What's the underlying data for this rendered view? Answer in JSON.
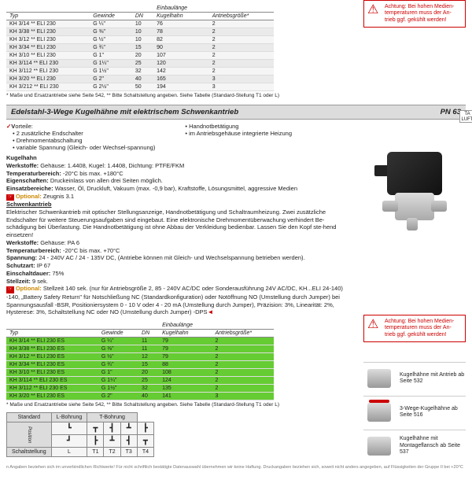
{
  "warning1": {
    "text": "Achtung: Bei hohen Medien-temperaturen muss der An-trieb ggf. gekühlt werden!"
  },
  "warning2": {
    "text": "Achtung: Bei hohen Medien-temperaturen muss der An-trieb ggf. gekühlt werden!"
  },
  "table1": {
    "headers": [
      "Typ",
      "Gewinde",
      "DN",
      "Kugelhahn",
      "Antriebsgröße*"
    ],
    "header_group": "Einbaulänge",
    "rows": [
      [
        "KH 3/14 ** ELI 230",
        "G ¼\"",
        "10",
        "76",
        "2"
      ],
      [
        "KH 3/38 ** ELI 230",
        "G ⅜\"",
        "10",
        "78",
        "2"
      ],
      [
        "KH 3/12 ** ELI 230",
        "G ½\"",
        "10",
        "82",
        "2"
      ],
      [
        "KH 3/34 ** ELI 230",
        "G ¾\"",
        "15",
        "90",
        "2"
      ],
      [
        "KH 3/10 ** ELI 230",
        "G 1\"",
        "20",
        "107",
        "2"
      ],
      [
        "KH 3/114 ** ELI 230",
        "G 1¼\"",
        "25",
        "120",
        "2"
      ],
      [
        "KH 3/112 ** ELI 230",
        "G 1½\"",
        "32",
        "142",
        "2"
      ],
      [
        "KH 3/20 ** ELI 230",
        "G 2\"",
        "40",
        "165",
        "3"
      ],
      [
        "KH 3/212 ** ELI 230",
        "G 2½\"",
        "50",
        "194",
        "3"
      ]
    ],
    "footnote": "* Maße und Ersatzantriebe siehe Seite 542, ** Bitte Schaltstellung angeben. Siehe Tabelle (Standard-Stellung T1 oder L)"
  },
  "title": {
    "main": "Edelstahl-3-Wege Kugelhähne mit elektrischem Schwenkantrieb",
    "pn": "PN 63"
  },
  "vorteile": {
    "label": "orteile:",
    "col1": [
      "2 zusätzliche Endschalter",
      "Drehmomentabschaltung",
      "variable Spannung (Gleich- oder Wechsel-spannung)"
    ],
    "col2": [
      "Handnotbetätigung",
      "im Antriebsgehäuse integrierte Heizung"
    ]
  },
  "specs": {
    "kugelhahn": "Kugelhahn",
    "werkstoffe1": "Gehäuse: 1.4408, Kugel: 1.4408, Dichtung: PTFE/FKM",
    "tempbereich1": "-20°C bis max. +180°C",
    "eigenschaften": "Druckeinlass von allen drei Seiten möglich.",
    "einsatz": "Wasser, Öl, Druckluft, Vakuum (max. -0,9 bar), Kraftstoffe, Lösungsmittel, aggressive Medien",
    "opt1": "Zeugnis 3.1",
    "schwenk": "Schwenkantrieb",
    "schwenk_txt": "Elektrischer Schwenkantrieb mit optischer Stellungsanzeige, Handnotbetätigung und Schaltraumheizung. Zwei zusätzliche Endschalter für weitere Steuerungsaufgaben sind eingebaut. Eine elektronische Drehmomentüberwachung verhindert Be-schädigung bei Überlastung. Die Handnotbetätigung ist ohne Abbau der Verkleidung bedienbar. Lassen Sie den Kopf ste-hend einsetzen!",
    "werkstoffe2": "Gehäuse: PA 6",
    "tempbereich2": "-20°C bis max. +70°C",
    "spannung": "24 - 240V AC / 24 - 135V DC, (Antriebe können mit Gleich- und Wechselspannung betrieben werden).",
    "schutzart": "IP 67",
    "einschalt": "75%",
    "stellzeit": "9 sek.",
    "opt2": "Stellzeit 140 sek. (nur für Antriebsgröße 2, 85 - 240V AC/DC oder Sonderausführung 24V AC/DC, KH...ELI 24-140) -140, „Battery Safety Return\" für Notschließung NC (Standardkonfiguration) oder Notöffnung NO (Umstellung durch Jumper) bei Spannungsausfall -BSR, Positioniersystem 0 - 10 V oder 4 - 20 mA (Umstellung durch Jumper), Präzision: 3%, Linearität: 2%, Hysterese: 3%, Schaltstellung NC oder NO (Umstellung durch Jumper) -DPS"
  },
  "table2": {
    "headers": [
      "Typ",
      "Gewinde",
      "DN",
      "Kugelhahn",
      "Antriebsgröße*"
    ],
    "header_group": "Einbaulänge",
    "rows": [
      [
        "KH 3/14 ** ELI 230 ES",
        "G ¼\"",
        "11",
        "79",
        "2"
      ],
      [
        "KH 3/38 ** ELI 230 ES",
        "G ⅜\"",
        "11",
        "79",
        "2"
      ],
      [
        "KH 3/12 ** ELI 230 ES",
        "G ½\"",
        "12",
        "79",
        "2"
      ],
      [
        "KH 3/34 ** ELI 230 ES",
        "G ¾\"",
        "15",
        "88",
        "2"
      ],
      [
        "KH 3/10 ** ELI 230 ES",
        "G 1\"",
        "20",
        "108",
        "2"
      ],
      [
        "KH 3/114 ** ELI 230 ES",
        "G 1¼\"",
        "25",
        "124",
        "2"
      ],
      [
        "KH 3/112 ** ELI 230 ES",
        "G 1½\"",
        "32",
        "135",
        "2"
      ],
      [
        "KH 3/20 ** ELI 230 ES",
        "G 2\"",
        "40",
        "141",
        "3"
      ]
    ],
    "footnote": "* Maße und Ersatzantriebe siehe Seite 542, ** Bitte Schaltstellung angeben. Siehe Tabelle (Standard-Stellung T1 oder L)"
  },
  "bore": {
    "h1": "Standard",
    "h2": "L-Bohrung",
    "h3": "T-Bohrung",
    "row_lbl": [
      "Position",
      "Schaltstellung"
    ],
    "cols": [
      "L",
      "T1",
      "T2",
      "T3",
      "T4"
    ]
  },
  "side": [
    {
      "txt": "Kugelhähne mit Antrieb ab Seite 532"
    },
    {
      "txt": "3-Wege-Kugelhähne ab Seite 516"
    },
    {
      "txt": "Kugelhähne mit Montageflansch ab Seite 537"
    }
  ],
  "taluft": "TA LUFT",
  "bottom": "n Angaben beziehen sich im unverbindlichen Richtwerte! Für nicht schriftlich bestätigte Datenauswahl übernehmen wir keine Haftung. Druckangaben beziehen sich, soweit nicht anders angegeben, auf Flüssigkeiten der Gruppe II bei +20°C"
}
